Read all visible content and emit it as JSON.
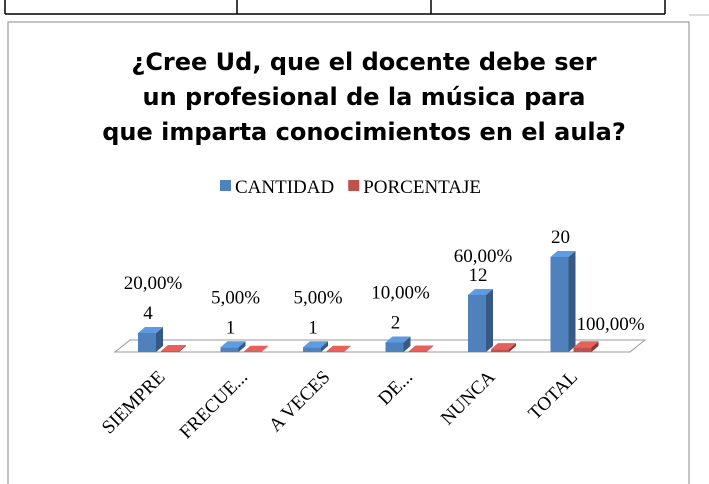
{
  "chart_data": {
    "type": "bar3d",
    "title": "¿Cree Ud, que el docente debe ser un profesional de la música para que imparta conocimientos en el aula?",
    "categories": [
      "SIEMPRE",
      "FRECUE...",
      "A VECES",
      "DE...",
      "NUNCA",
      "TOTAL"
    ],
    "series": [
      {
        "name": "CANTIDAD",
        "color": "#4f81bd",
        "values": [
          4,
          1,
          1,
          2,
          12,
          20
        ]
      },
      {
        "name": "PORCENTAJE",
        "color": "#c0504d",
        "values": [
          0.2,
          0.05,
          0.05,
          0.1,
          0.6,
          1.0
        ],
        "value_labels": [
          "20,00%",
          "5,00%",
          "5,00%",
          "10,00%",
          "60,00%",
          "100,00%"
        ]
      }
    ],
    "ylim": [
      0,
      20
    ],
    "legend": "top"
  }
}
